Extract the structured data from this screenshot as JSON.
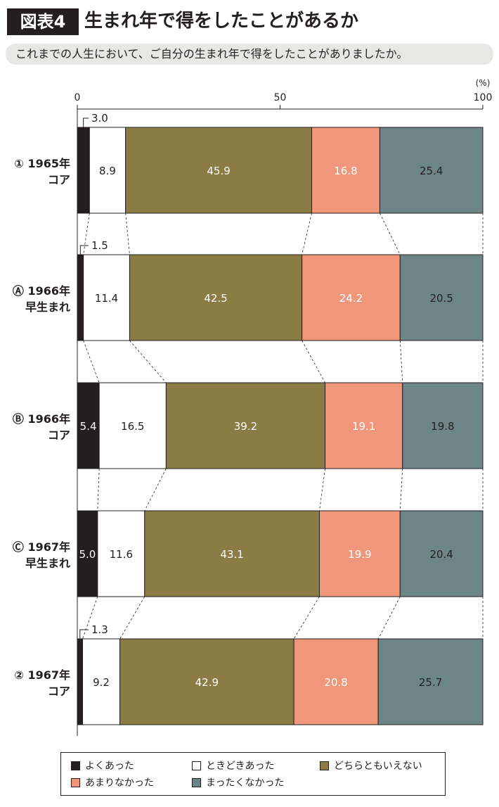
{
  "header": {
    "badge": "図表4",
    "title": "生まれ年で得をしたことがあるか",
    "subtitle": "これまでの人生において、ご自分の生まれ年で得をしたことがありましたか。"
  },
  "chart_data": {
    "type": "bar",
    "orientation": "horizontal",
    "stacked": true,
    "percent_unit": "(%)",
    "xlim": [
      0,
      100
    ],
    "xticks": [
      "0",
      "50",
      "100"
    ],
    "categories": [
      {
        "line1": "① 1965年",
        "line2": "コア"
      },
      {
        "line1": "Ⓐ 1966年",
        "line2": "早生まれ"
      },
      {
        "line1": "Ⓑ 1966年",
        "line2": "コア"
      },
      {
        "line1": "Ⓒ 1967年",
        "line2": "早生まれ"
      },
      {
        "line1": "② 1967年",
        "line2": "コア"
      }
    ],
    "series": [
      {
        "name": "よくあった",
        "color": "#231f20",
        "text_color": "#ffffff",
        "values": [
          3.0,
          1.5,
          5.4,
          5.0,
          1.3
        ]
      },
      {
        "name": "ときどきあった",
        "color": "#ffffff",
        "text_color": "#231f20",
        "values": [
          8.9,
          11.4,
          16.5,
          11.6,
          9.2
        ]
      },
      {
        "name": "どちらともいえない",
        "color": "#8b7b44",
        "text_color": "#ffffff",
        "values": [
          45.9,
          42.5,
          39.2,
          43.1,
          42.9
        ]
      },
      {
        "name": "あまりなかった",
        "color": "#f0967a",
        "text_color": "#ffffff",
        "values": [
          16.8,
          24.2,
          19.1,
          19.9,
          20.8
        ]
      },
      {
        "name": "まったくなかった",
        "color": "#6d8587",
        "text_color": "#231f20",
        "values": [
          25.4,
          20.5,
          19.8,
          20.4,
          25.7
        ]
      }
    ],
    "value_labels": [
      [
        "3.0",
        "8.9",
        "45.9",
        "16.8",
        "25.4"
      ],
      [
        "1.5",
        "11.4",
        "42.5",
        "24.2",
        "20.5"
      ],
      [
        "5.4",
        "16.5",
        "39.2",
        "19.1",
        "19.8"
      ],
      [
        "5.0",
        "11.6",
        "43.1",
        "19.9",
        "20.4"
      ],
      [
        "1.3",
        "9.2",
        "42.9",
        "20.8",
        "25.7"
      ]
    ]
  }
}
